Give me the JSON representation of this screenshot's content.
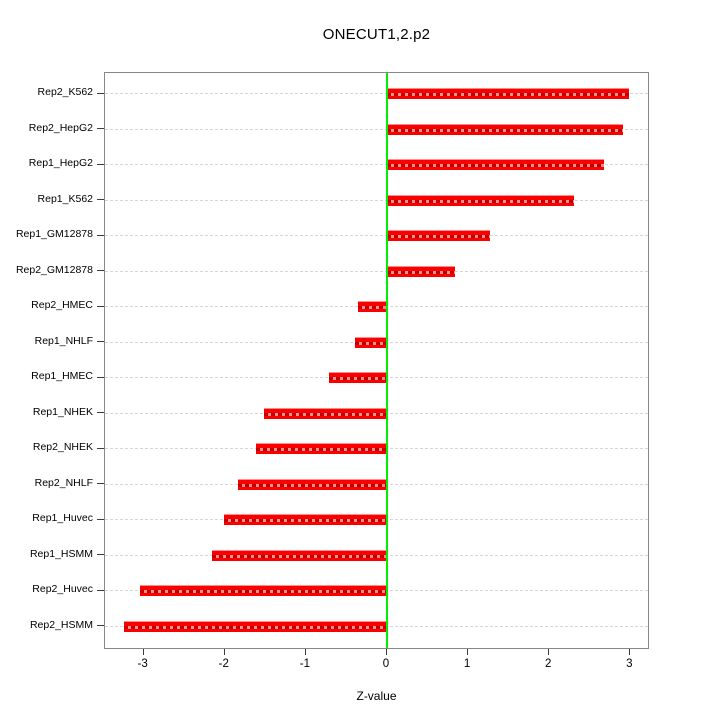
{
  "title": "ONECUT1,2.p2",
  "x_axis": {
    "label": "Z-value",
    "tick_labels": [
      "-3",
      "-2",
      "-1",
      "0",
      "1",
      "2",
      "3"
    ],
    "tick_values": [
      -3,
      -2,
      -1,
      0,
      1,
      2,
      3
    ]
  },
  "colors": {
    "bar": "#fb0000",
    "zero_line": "#00ef00",
    "gridline": "#d6d6d6",
    "frame": "#878787",
    "text": "#000000",
    "background": "#ffffff"
  },
  "chart_data": {
    "type": "bar",
    "orientation": "horizontal",
    "title": "ONECUT1,2.p2",
    "xlabel": "Z-value",
    "categories": [
      "Rep2_K562",
      "Rep2_HepG2",
      "Rep1_HepG2",
      "Rep1_K562",
      "Rep1_GM12878",
      "Rep2_GM12878",
      "Rep2_HMEC",
      "Rep1_NHLF",
      "Rep1_HMEC",
      "Rep1_NHEK",
      "Rep2_NHEK",
      "Rep2_NHLF",
      "Rep1_Huvec",
      "Rep1_HSMM",
      "Rep2_Huvec",
      "Rep2_HSMM"
    ],
    "values": [
      2.99,
      2.91,
      2.68,
      2.3,
      1.27,
      0.84,
      -0.36,
      -0.4,
      -0.72,
      -1.52,
      -1.61,
      -1.84,
      -2.01,
      -2.16,
      -3.05,
      -3.24
    ],
    "xlim": [
      -3.48,
      3.22
    ],
    "grid": "horizontal-dashed",
    "zero_reference_line": 0,
    "legend": "none"
  }
}
